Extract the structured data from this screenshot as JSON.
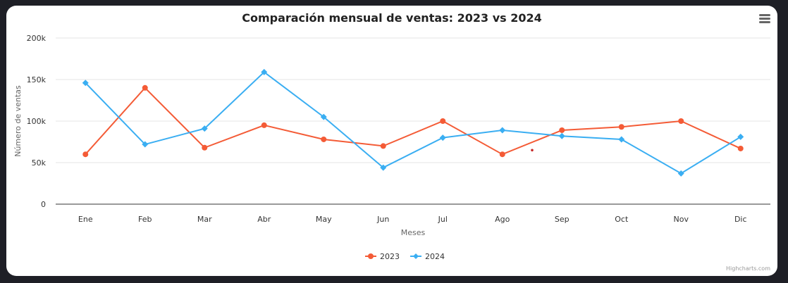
{
  "chart_data": {
    "type": "line",
    "title": "Comparación mensual de ventas: 2023 vs 2024",
    "xlabel": "Meses",
    "ylabel": "Número de ventas",
    "categories": [
      "Ene",
      "Feb",
      "Mar",
      "Abr",
      "May",
      "Jun",
      "Jul",
      "Ago",
      "Sep",
      "Oct",
      "Nov",
      "Dic"
    ],
    "ylim": [
      0,
      200000
    ],
    "yticks": [
      0,
      50000,
      100000,
      150000,
      200000
    ],
    "ytick_labels": [
      "0",
      "50k",
      "100k",
      "150k",
      "200k"
    ],
    "grid": true,
    "legend": "bottom-center",
    "series": [
      {
        "name": "2023",
        "color": "#f45b36",
        "marker": "circle",
        "values": [
          60000,
          140000,
          68000,
          95000,
          78000,
          70000,
          100000,
          60000,
          89000,
          93000,
          100000,
          67000
        ]
      },
      {
        "name": "2024",
        "color": "#3aaef2",
        "marker": "diamond",
        "values": [
          146000,
          72000,
          91000,
          159000,
          105000,
          44000,
          80000,
          89000,
          82000,
          78000,
          37000,
          81000
        ]
      }
    ],
    "stray_point": {
      "x_between": [
        "Ago",
        "Sep"
      ],
      "y": 65000,
      "color": "#c62828"
    }
  },
  "menu_icon": "hamburger-menu-icon",
  "credits": "Highcharts.com"
}
